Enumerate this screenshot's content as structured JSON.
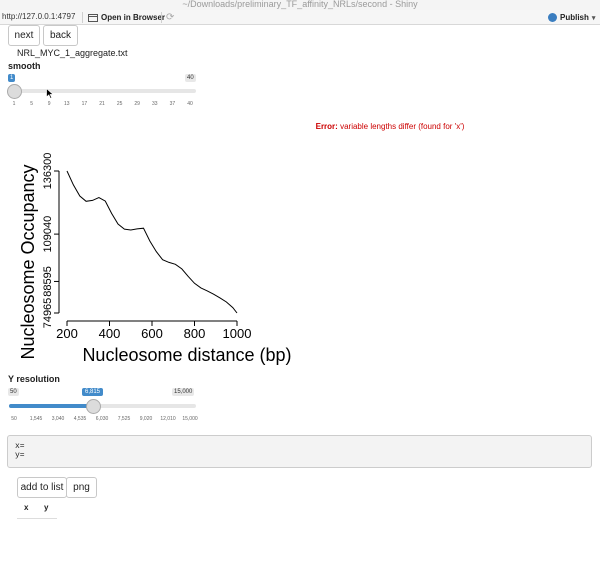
{
  "window": {
    "title": "~/Downloads/preliminary_TF_affinity_NRLs/second - Shiny"
  },
  "toolbar": {
    "url": "http://127.0.0.1:4797",
    "open_in_browser": "Open in Browser",
    "publish": "Publish"
  },
  "nav": {
    "next": "next",
    "back": "back"
  },
  "filename": "NRL_MYC_1_aggregate.txt",
  "smooth": {
    "label": "smooth",
    "min": "1",
    "max": "40",
    "value": "1",
    "fraction": 0.0,
    "ticks": [
      "1",
      "5",
      "9",
      "13",
      "17",
      "21",
      "25",
      "29",
      "33",
      "37",
      "40"
    ]
  },
  "error": {
    "prefix": "Error:",
    "message": "variable lengths differ (found for 'x')"
  },
  "chart_data": {
    "type": "line",
    "xlabel": "Nucleosome distance (bp)",
    "ylabel": "Nucleosome Occupancy",
    "xlim": [
      200,
      1000
    ],
    "ylim": [
      74965,
      136300
    ],
    "x_ticks": [
      "200",
      "400",
      "600",
      "800",
      "1000"
    ],
    "y_ticks": [
      "74965",
      "88595",
      "109040",
      "136300"
    ],
    "x": [
      200,
      230,
      260,
      290,
      320,
      350,
      380,
      410,
      440,
      470,
      500,
      530,
      560,
      590,
      620,
      650,
      680,
      710,
      740,
      770,
      800,
      830,
      860,
      890,
      920,
      950,
      980,
      1000
    ],
    "series": [
      {
        "values": [
          136300,
          130300,
          125500,
          123200,
          123600,
          124800,
          123300,
          118000,
          113400,
          111200,
          110800,
          111300,
          111600,
          106000,
          101500,
          98000,
          96800,
          96000,
          94000,
          90800,
          87800,
          85800,
          84500,
          83100,
          81500,
          79700,
          77300,
          74965
        ]
      }
    ]
  },
  "yres": {
    "label": "Y resolution",
    "min": "50",
    "max": "15,000",
    "value": "6,815",
    "fraction": 0.45,
    "ticks": [
      "50",
      "1,545",
      "3,040",
      "4,535",
      "6,030",
      "7,525",
      "9,020",
      "12,010",
      "15,000"
    ]
  },
  "verbatim": {
    "x": "x=",
    "y": "y="
  },
  "actions": {
    "add_to_list": "add to list",
    "png": "png"
  },
  "table": {
    "col_x": "x",
    "col_y": "y"
  }
}
